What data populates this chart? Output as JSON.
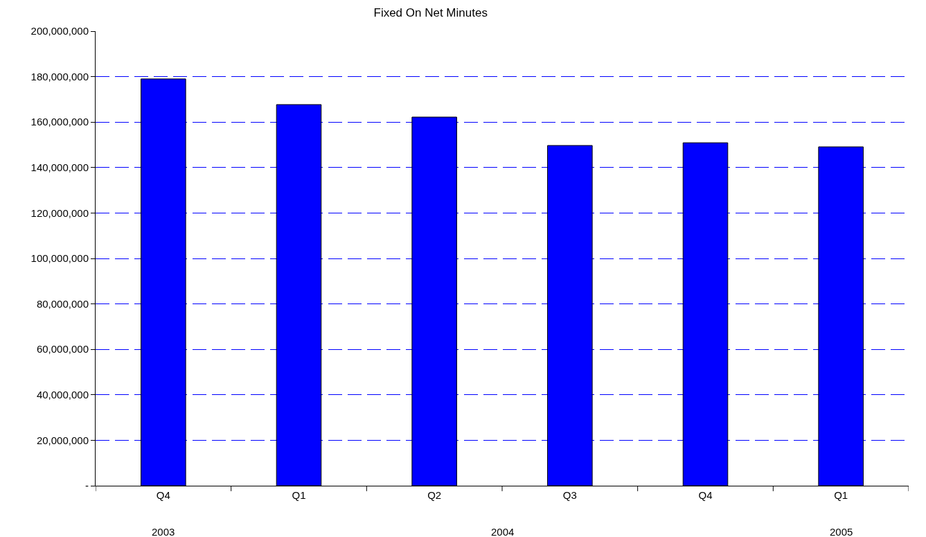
{
  "chart_data": {
    "type": "bar",
    "title": "Fixed On Net Minutes",
    "categories": [
      "Q4",
      "Q1",
      "Q2",
      "Q3",
      "Q4",
      "Q1"
    ],
    "values": [
      179000000,
      167700000,
      162200000,
      149700000,
      150900000,
      149100000
    ],
    "color": "#0000ff",
    "ylim": [
      0,
      200000000
    ],
    "yticks": [
      {
        "value": 0,
        "label": "-"
      },
      {
        "value": 20000000,
        "label": "20,000,000"
      },
      {
        "value": 40000000,
        "label": "40,000,000"
      },
      {
        "value": 60000000,
        "label": "60,000,000"
      },
      {
        "value": 80000000,
        "label": "80,000,000"
      },
      {
        "value": 100000000,
        "label": "100,000,000"
      },
      {
        "value": 120000000,
        "label": "120,000,000"
      },
      {
        "value": 140000000,
        "label": "140,000,000"
      },
      {
        "value": 160000000,
        "label": "160,000,000"
      },
      {
        "value": 180000000,
        "label": "180,000,000"
      },
      {
        "value": 200000000,
        "label": "200,000,000"
      }
    ],
    "grid": "y",
    "annotations": [
      "2003",
      "2004",
      "2005"
    ]
  }
}
